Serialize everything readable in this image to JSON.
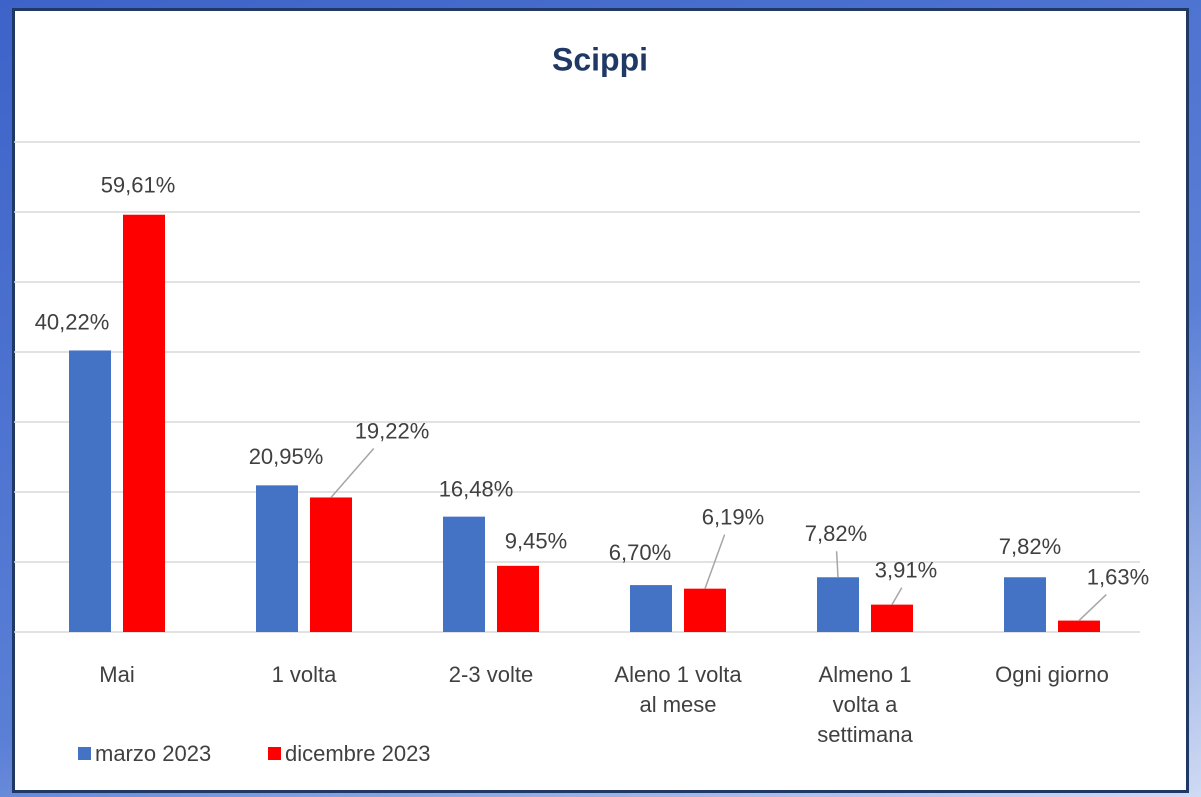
{
  "chart_data": {
    "type": "bar",
    "title": "Scippi",
    "categories": [
      "Mai",
      "1 volta",
      "2-3 volte",
      "Aleno 1 volta\nal mese",
      "Almeno 1\nvolta a\nsettimana",
      "Ogni giorno"
    ],
    "series": [
      {
        "name": "marzo 2023",
        "color": "#4472c4",
        "values": [
          40.22,
          20.95,
          16.48,
          6.7,
          7.82,
          7.82
        ],
        "value_labels": [
          "40,22%",
          "20,95%",
          "16,48%",
          "6,70%",
          "7,82%",
          "7,82%"
        ]
      },
      {
        "name": "dicembre 2023",
        "color": "#ff0000",
        "values": [
          59.61,
          19.22,
          9.45,
          6.19,
          3.91,
          1.63
        ],
        "value_labels": [
          "59,61%",
          "19,22%",
          "9,45%",
          "6,19%",
          "3,91%",
          "1,63%"
        ]
      }
    ],
    "ylim": [
      0,
      70
    ],
    "yticks": [
      0,
      10,
      20,
      30,
      40,
      50,
      60,
      70
    ],
    "grid": true,
    "legend": "bottom-left"
  }
}
